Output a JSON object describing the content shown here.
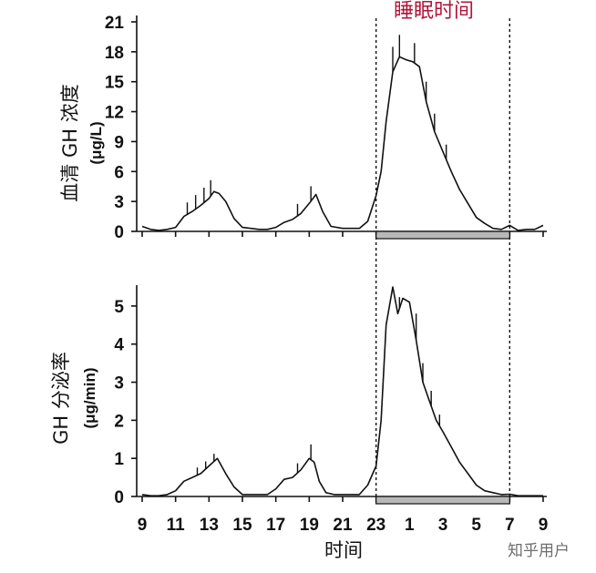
{
  "chart_data": [
    {
      "type": "line",
      "ylabel": "血清 GH 浓度",
      "yunit": "(μg/L)",
      "ylim": [
        0,
        21
      ],
      "yticks": [
        0,
        3,
        6,
        9,
        12,
        15,
        18,
        21
      ],
      "x_tick_labels": [
        "9",
        "11",
        "13",
        "15",
        "17",
        "19",
        "21",
        "23",
        "1",
        "3",
        "5",
        "7",
        "9"
      ],
      "sleep_label": "睡眠时间",
      "sleep_period": [
        23,
        31
      ],
      "series": [
        {
          "x": [
            9.0,
            9.5,
            10.0,
            10.5,
            11.0,
            11.5,
            12.0,
            12.5,
            13.0,
            13.3,
            13.6,
            14.0,
            14.5,
            15.0,
            15.5,
            16.0,
            16.5,
            17.0,
            17.5,
            18.0,
            18.5,
            19.0,
            19.4,
            19.8,
            20.3,
            21.0,
            21.5,
            22.0,
            22.5,
            23.0,
            23.3,
            23.6,
            24.0,
            24.4,
            24.8,
            25.2,
            25.6,
            26.0,
            26.5,
            27.0,
            27.5,
            28.0,
            28.5,
            29.0,
            29.5,
            30.0,
            30.5,
            31.0,
            31.5,
            32.0,
            32.5,
            33.0
          ],
          "y": [
            0.5,
            0.2,
            0.1,
            0.2,
            0.4,
            1.5,
            2.0,
            2.6,
            3.3,
            4.0,
            3.8,
            3.0,
            1.3,
            0.4,
            0.3,
            0.2,
            0.2,
            0.4,
            0.9,
            1.2,
            1.8,
            2.8,
            3.7,
            2.0,
            0.5,
            0.3,
            0.3,
            0.3,
            1.0,
            3.6,
            6.0,
            11.0,
            16.0,
            17.5,
            17.2,
            17.0,
            16.5,
            13.0,
            10.0,
            8.0,
            6.0,
            4.2,
            2.8,
            1.4,
            0.8,
            0.3,
            0.2,
            0.6,
            0.1,
            0.2,
            0.2,
            0.6
          ]
        }
      ]
    },
    {
      "type": "line",
      "ylabel": "GH 分泌率",
      "yunit": "(μg/min)",
      "ylim": [
        0,
        5.5
      ],
      "yticks": [
        0,
        1,
        2,
        3,
        4,
        5
      ],
      "x_tick_labels": [
        "9",
        "11",
        "13",
        "15",
        "17",
        "19",
        "21",
        "23",
        "1",
        "3",
        "5",
        "7",
        "9"
      ],
      "sleep_period": [
        23,
        31
      ],
      "series": [
        {
          "x": [
            9.0,
            9.5,
            10.0,
            10.5,
            11.0,
            11.5,
            12.0,
            12.5,
            13.0,
            13.5,
            14.0,
            14.5,
            15.0,
            15.5,
            16.0,
            16.5,
            17.0,
            17.5,
            18.0,
            18.5,
            19.0,
            19.3,
            19.6,
            20.0,
            20.5,
            21.0,
            21.5,
            22.0,
            22.5,
            23.0,
            23.3,
            23.6,
            24.0,
            24.3,
            24.6,
            25.0,
            25.4,
            25.8,
            26.2,
            26.6,
            27.0,
            27.5,
            28.0,
            28.5,
            29.0,
            29.5,
            30.0,
            30.5,
            31.0,
            31.5,
            32.0,
            32.5,
            33.0
          ],
          "y": [
            0.05,
            0.02,
            0.02,
            0.05,
            0.15,
            0.4,
            0.5,
            0.6,
            0.8,
            1.0,
            0.6,
            0.25,
            0.05,
            0.05,
            0.05,
            0.05,
            0.2,
            0.45,
            0.5,
            0.7,
            1.0,
            0.9,
            0.4,
            0.1,
            0.05,
            0.05,
            0.05,
            0.05,
            0.3,
            0.8,
            2.0,
            4.5,
            5.5,
            4.8,
            5.2,
            5.1,
            4.1,
            3.0,
            2.5,
            2.0,
            1.7,
            1.3,
            0.9,
            0.6,
            0.3,
            0.15,
            0.1,
            0.05,
            0.06,
            0.02,
            0.02,
            0.02,
            0.02
          ]
        }
      ]
    }
  ],
  "xlabel": "时间",
  "watermark": "知乎用户"
}
